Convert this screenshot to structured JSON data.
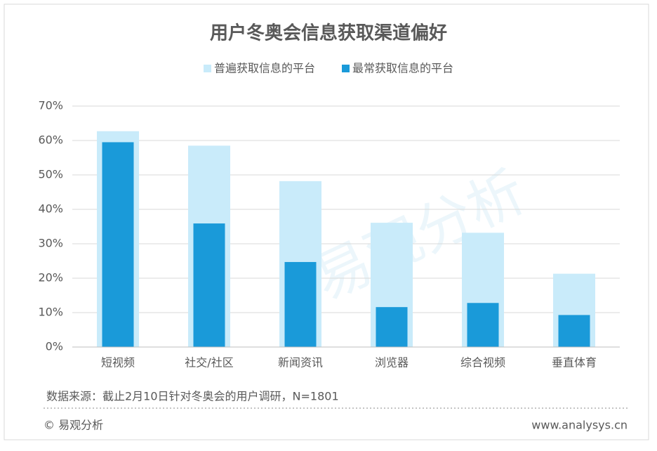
{
  "chart_data": {
    "type": "bar",
    "title": "用户冬奥会信息获取渠道偏好",
    "categories": [
      "短视频",
      "社交/社区",
      "新闻资讯",
      "浏览器",
      "综合视频",
      "垂直体育"
    ],
    "series": [
      {
        "name": "普遍获取信息的平台",
        "color": "#c9ebfa",
        "values": [
          62.7,
          58.5,
          48.2,
          36.1,
          33.2,
          21.3
        ]
      },
      {
        "name": "最常获取信息的平台",
        "color": "#1a9ad9",
        "values": [
          59.5,
          35.9,
          24.7,
          11.6,
          12.8,
          9.3
        ]
      }
    ],
    "ylim": [
      0,
      70
    ],
    "yticks": [
      {
        "value": 0,
        "label": "0%"
      },
      {
        "value": 10,
        "label": "10%"
      },
      {
        "value": 20,
        "label": "20%"
      },
      {
        "value": 30,
        "label": "30%"
      },
      {
        "value": 40,
        "label": "40%"
      },
      {
        "value": 50,
        "label": "50%"
      },
      {
        "value": 60,
        "label": "60%"
      },
      {
        "value": 70,
        "label": "70%"
      }
    ],
    "grid": true,
    "legend": "top",
    "source": "数据来源：截止2月10日针对冬奥会的用户调研，N=1801",
    "copyright": "© 易观分析",
    "website": "www.analysys.cn",
    "watermark": "易观分析"
  }
}
